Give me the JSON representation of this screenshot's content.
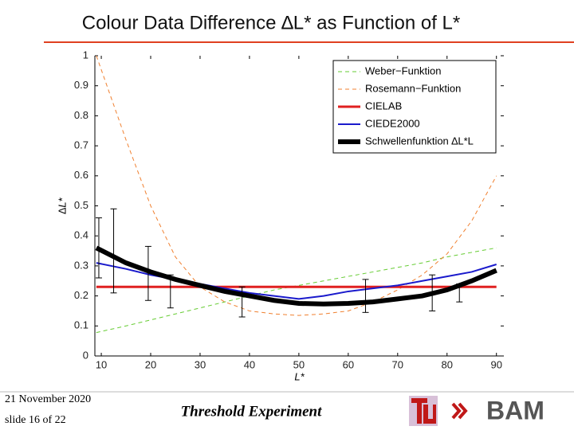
{
  "slide": {
    "title": "Colour Data Difference ∆L* as Function of L*",
    "date": "21 November 2020",
    "slide_number": "slide 16 of 22",
    "footer_title": "Threshold Experiment",
    "logo_text": "BAM"
  },
  "chart_data": {
    "type": "line",
    "x_label": "L*",
    "y_label": "∆L*",
    "x": [
      9,
      15,
      20,
      25,
      30,
      35,
      40,
      45,
      50,
      55,
      60,
      65,
      70,
      75,
      80,
      85,
      90
    ],
    "series": [
      {
        "name": "Weber−Funktion",
        "color": "#66cc33",
        "style": "dashed",
        "width": 1,
        "values": [
          0.078,
          0.1,
          0.12,
          0.14,
          0.16,
          0.18,
          0.2,
          0.22,
          0.235,
          0.25,
          0.265,
          0.28,
          0.295,
          0.31,
          0.33,
          0.345,
          0.36
        ]
      },
      {
        "name": "Rosemann−Funktion",
        "color": "#f08030",
        "style": "dashed",
        "width": 1,
        "values": [
          1.0,
          0.72,
          0.5,
          0.33,
          0.23,
          0.18,
          0.15,
          0.14,
          0.135,
          0.14,
          0.15,
          0.18,
          0.22,
          0.27,
          0.34,
          0.45,
          0.6
        ]
      },
      {
        "name": "CIELAB",
        "color": "#e02020",
        "style": "solid",
        "width": 3,
        "values": [
          0.23,
          0.23,
          0.23,
          0.23,
          0.23,
          0.23,
          0.23,
          0.23,
          0.23,
          0.23,
          0.23,
          0.23,
          0.23,
          0.23,
          0.23,
          0.23,
          0.23
        ]
      },
      {
        "name": "CIEDE2000",
        "color": "#1a1acc",
        "style": "solid",
        "width": 2,
        "values": [
          0.31,
          0.29,
          0.27,
          0.255,
          0.24,
          0.225,
          0.21,
          0.2,
          0.19,
          0.2,
          0.215,
          0.225,
          0.235,
          0.25,
          0.265,
          0.28,
          0.305
        ]
      },
      {
        "name": "Schwellenfunktion ∆L*L",
        "color": "#000000",
        "style": "solid",
        "width": 6,
        "values": [
          0.36,
          0.31,
          0.28,
          0.255,
          0.235,
          0.215,
          0.2,
          0.185,
          0.175,
          0.173,
          0.175,
          0.18,
          0.19,
          0.2,
          0.22,
          0.25,
          0.285
        ]
      }
    ],
    "error_bars": {
      "x": [
        9.5,
        12.5,
        19.5,
        24,
        38.5,
        63.5,
        77,
        82.5
      ],
      "values": [
        0.36,
        0.35,
        0.275,
        0.215,
        0.18,
        0.2,
        0.21,
        0.21
      ],
      "errors": [
        0.1,
        0.14,
        0.09,
        0.055,
        0.05,
        0.055,
        0.06,
        0.03
      ],
      "color": "#000000"
    },
    "xlim": [
      8.7,
      91.5
    ],
    "ylim": [
      0,
      1
    ],
    "xticks": [
      10,
      20,
      30,
      40,
      50,
      60,
      70,
      80,
      90
    ],
    "yticks": [
      0,
      0.1,
      0.2,
      0.3,
      0.4,
      0.5,
      0.6,
      0.7,
      0.8,
      0.9,
      1
    ],
    "legend": "upper right"
  }
}
